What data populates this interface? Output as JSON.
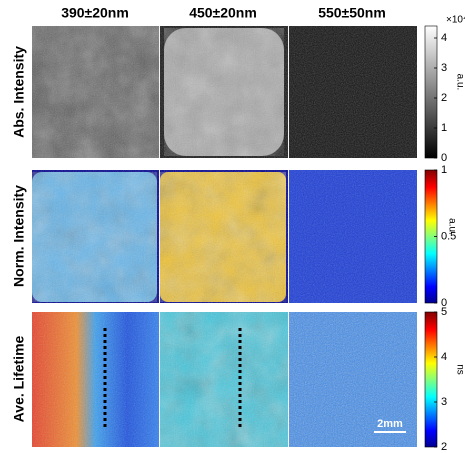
{
  "columns": [
    "390±20nm",
    "450±20nm",
    "550±50nm"
  ],
  "rows": [
    {
      "label": "Abs. Intensity",
      "colorbar": {
        "lim": [
          0,
          4.4
        ],
        "ticks": [
          0,
          1,
          2,
          3,
          4
        ],
        "unit": "a.u.",
        "multiplier": "×10⁴"
      }
    },
    {
      "label": "Norm. Intensity",
      "colorbar": {
        "lim": [
          0,
          1
        ],
        "ticks": [
          0,
          0.5,
          1
        ],
        "unit": "a.u."
      }
    },
    {
      "label": "Ave. Lifetime",
      "colorbar": {
        "lim": [
          2,
          5
        ],
        "ticks": [
          2,
          3,
          4,
          5
        ],
        "unit": "ns"
      }
    }
  ],
  "scale_bar": "2mm"
}
